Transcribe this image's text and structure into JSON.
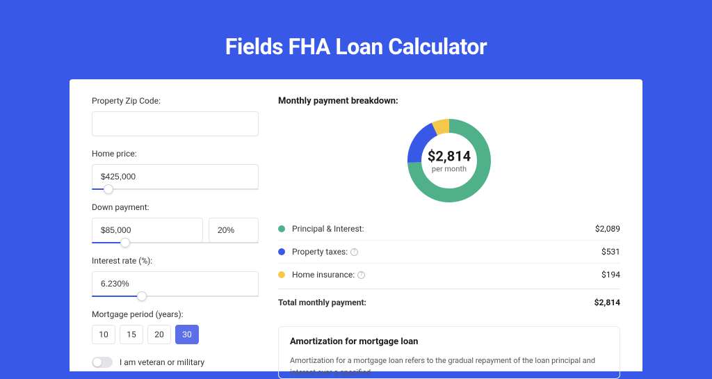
{
  "page": {
    "title": "Fields FHA Loan Calculator",
    "background_color": "#3859e8",
    "card_background": "#ffffff"
  },
  "form": {
    "zip": {
      "label": "Property Zip Code:",
      "value": ""
    },
    "home_price": {
      "label": "Home price:",
      "value": "$425,000",
      "slider_fill_pct": 10
    },
    "down_payment": {
      "label": "Down payment:",
      "amount": "$85,000",
      "pct": "20%",
      "slider_fill_pct": 20
    },
    "interest_rate": {
      "label": "Interest rate (%):",
      "value": "6.230%",
      "slider_fill_pct": 30
    },
    "period": {
      "label": "Mortgage period (years):",
      "options": [
        "10",
        "15",
        "20",
        "30"
      ],
      "selected_index": 3
    },
    "veteran": {
      "label": "I am veteran or military",
      "checked": false
    }
  },
  "breakdown": {
    "heading": "Monthly payment breakdown:",
    "donut": {
      "amount": "$2,814",
      "sub": "per month",
      "size": 120,
      "stroke_width": 20,
      "background_color": "#ffffff",
      "segments": [
        {
          "label": "Principal & Interest",
          "value": 2089,
          "color": "#4fb08a",
          "pct": 74.2
        },
        {
          "label": "Property taxes",
          "value": 531,
          "color": "#3859e8",
          "pct": 18.9
        },
        {
          "label": "Home insurance",
          "value": 194,
          "color": "#f4c94b",
          "pct": 6.9
        }
      ]
    },
    "rows": [
      {
        "swatch": "#4fb08a",
        "label": "Principal & Interest:",
        "info": false,
        "value": "$2,089"
      },
      {
        "swatch": "#3859e8",
        "label": "Property taxes:",
        "info": true,
        "value": "$531"
      },
      {
        "swatch": "#f4c94b",
        "label": "Home insurance:",
        "info": true,
        "value": "$194"
      }
    ],
    "total": {
      "label": "Total monthly payment:",
      "value": "$2,814"
    }
  },
  "amortization": {
    "heading": "Amortization for mortgage loan",
    "body": "Amortization for a mortgage loan refers to the gradual repayment of the loan principal and interest over a specified"
  }
}
